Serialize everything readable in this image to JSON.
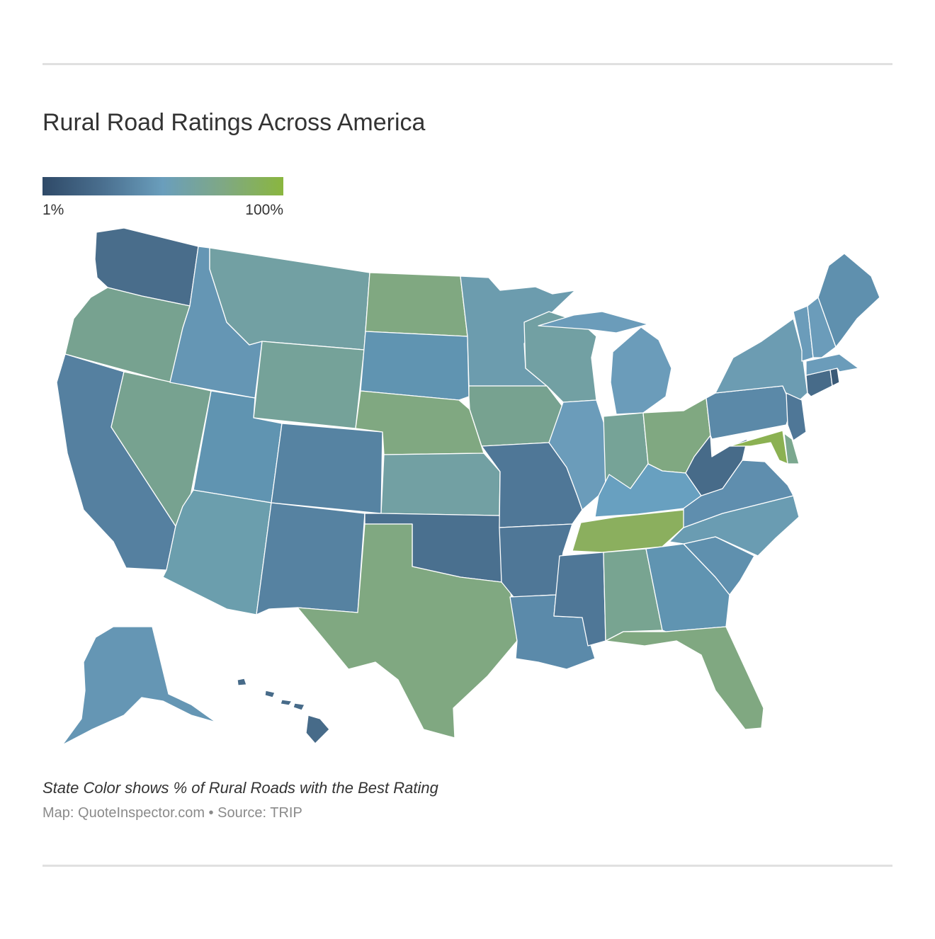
{
  "title": "Rural Road Ratings Across America",
  "legend": {
    "min_label": "1%",
    "max_label": "100%",
    "gradient": [
      "#2f4a68",
      "#4a6f8f",
      "#6a9ebc",
      "#7fa884",
      "#8ab63f"
    ]
  },
  "map": {
    "region": "United States",
    "metric": "% of rural roads with the best rating",
    "states": [
      {
        "id": "WA",
        "color": "#496d8b"
      },
      {
        "id": "OR",
        "color": "#77a290"
      },
      {
        "id": "CA",
        "color": "#5580a0"
      },
      {
        "id": "NV",
        "color": "#77a290"
      },
      {
        "id": "ID",
        "color": "#6596b4"
      },
      {
        "id": "MT",
        "color": "#72a0a3"
      },
      {
        "id": "WY",
        "color": "#75a299"
      },
      {
        "id": "UT",
        "color": "#6094b1"
      },
      {
        "id": "AZ",
        "color": "#6b9ead"
      },
      {
        "id": "CO",
        "color": "#5683a2"
      },
      {
        "id": "NM",
        "color": "#5682a1"
      },
      {
        "id": "ND",
        "color": "#80a881"
      },
      {
        "id": "SD",
        "color": "#6094b1"
      },
      {
        "id": "NE",
        "color": "#80a881"
      },
      {
        "id": "KS",
        "color": "#72a0a3"
      },
      {
        "id": "OK",
        "color": "#4a708f"
      },
      {
        "id": "TX",
        "color": "#80a881"
      },
      {
        "id": "MN",
        "color": "#6c9cae"
      },
      {
        "id": "IA",
        "color": "#77a290"
      },
      {
        "id": "MO",
        "color": "#4f7797"
      },
      {
        "id": "AR",
        "color": "#4f7797"
      },
      {
        "id": "LA",
        "color": "#5b8aaa"
      },
      {
        "id": "WI",
        "color": "#72a0a3"
      },
      {
        "id": "IL",
        "color": "#6b9cba"
      },
      {
        "id": "MI",
        "color": "#6b9cba"
      },
      {
        "id": "IN",
        "color": "#76a397"
      },
      {
        "id": "OH",
        "color": "#80a881"
      },
      {
        "id": "KY",
        "color": "#68a0c0"
      },
      {
        "id": "TN",
        "color": "#8baf5e"
      },
      {
        "id": "MS",
        "color": "#4f7797"
      },
      {
        "id": "AL",
        "color": "#78a491"
      },
      {
        "id": "GA",
        "color": "#6094b1"
      },
      {
        "id": "FL",
        "color": "#80a881"
      },
      {
        "id": "SC",
        "color": "#5f90ae"
      },
      {
        "id": "NC",
        "color": "#6a9cb2"
      },
      {
        "id": "VA",
        "color": "#5f8eae"
      },
      {
        "id": "WV",
        "color": "#476b89"
      },
      {
        "id": "PA",
        "color": "#5b89a8"
      },
      {
        "id": "NY",
        "color": "#6c9cb2"
      },
      {
        "id": "NJ",
        "color": "#4f7797"
      },
      {
        "id": "DE",
        "color": "#7ba88f"
      },
      {
        "id": "MD",
        "color": "#8bb152"
      },
      {
        "id": "CT",
        "color": "#476b89"
      },
      {
        "id": "RI",
        "color": "#3b5a77"
      },
      {
        "id": "MA",
        "color": "#6b9cba"
      },
      {
        "id": "VT",
        "color": "#6b9cba"
      },
      {
        "id": "NH",
        "color": "#6b9cba"
      },
      {
        "id": "ME",
        "color": "#5f90ae"
      },
      {
        "id": "AK",
        "color": "#6596b4"
      },
      {
        "id": "HI",
        "color": "#476b89"
      }
    ]
  },
  "note": "State Color shows % of Rural Roads with the Best Rating",
  "credit": "Map: QuoteInspector.com • Source: TRIP"
}
